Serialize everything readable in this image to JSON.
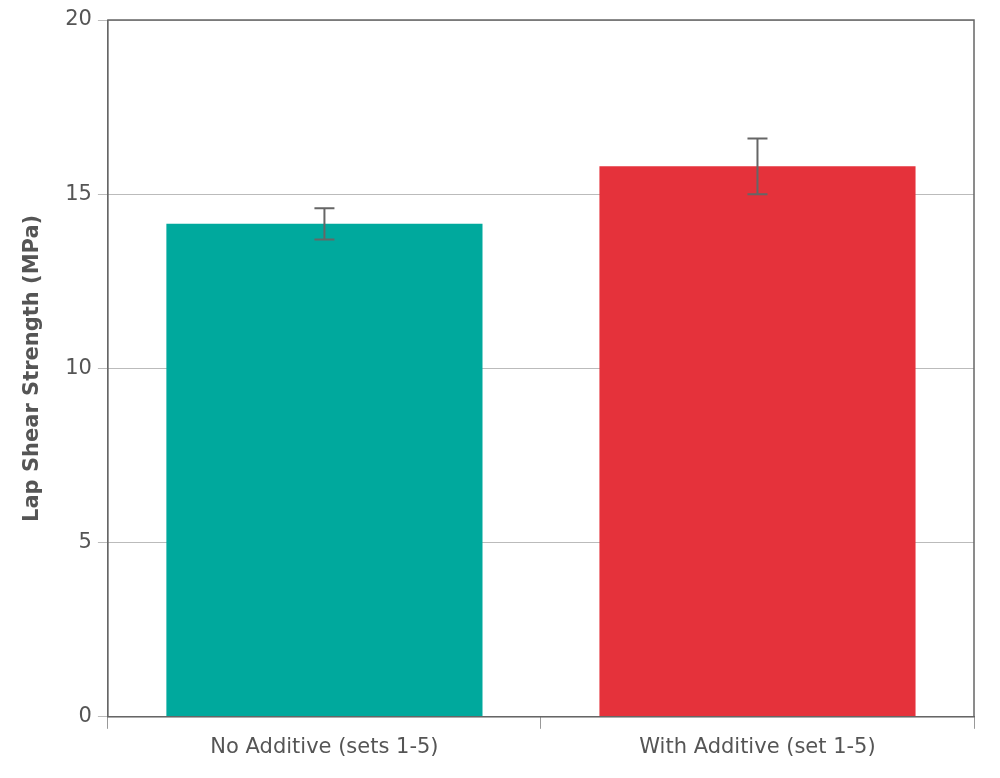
{
  "chart_data": {
    "type": "bar",
    "y_label": "Lap Shear Strength (MPa)",
    "categories": [
      "No Additive (sets 1-5)",
      "With Additive (set 1-5)"
    ],
    "values": [
      14.15,
      15.8
    ],
    "errors": [
      0.45,
      0.8
    ],
    "colors": [
      "#00a99d",
      "#e5323b"
    ],
    "ylim": [
      0,
      20
    ],
    "yticks": [
      0,
      5,
      10,
      15,
      20
    ],
    "grid": true
  }
}
